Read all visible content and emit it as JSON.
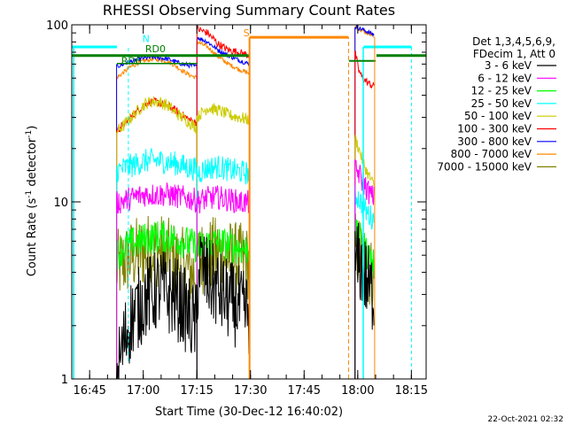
{
  "chart_data": {
    "type": "line",
    "title": "RHESSI Observing Summary Count Rates",
    "xlabel": "Start Time (30-Dec-12 16:40:02)",
    "ylabel_main": "Count Rate (s",
    "ylabel_sup1": "-1",
    "ylabel_mid": " detector",
    "ylabel_sup2": "-1",
    "ylabel_end": ")",
    "yscale": "log",
    "ylim": [
      1,
      100
    ],
    "y_ticks": [
      "1",
      "10",
      "100"
    ],
    "xlim_minutes": [
      -0.03,
      99.1
    ],
    "x_ticks": [
      {
        "label": "16:45",
        "m": 4.97
      },
      {
        "label": "17:00",
        "m": 19.97
      },
      {
        "label": "17:15",
        "m": 34.97
      },
      {
        "label": "17:30",
        "m": 49.97
      },
      {
        "label": "17:45",
        "m": 64.97
      },
      {
        "label": "18:00",
        "m": 79.97
      },
      {
        "label": "18:15",
        "m": 94.97
      }
    ],
    "legend_placement": "right",
    "legend_header": [
      "Det 1,3,4,5,6,9,",
      "FDecim 1, Att 0"
    ],
    "series": [
      {
        "name": "3 - 6 keV",
        "color": "#000000",
        "seg1": [
          1.0,
          1.6,
          2.2,
          2.5,
          2.9,
          3.0,
          3.3,
          3.0,
          2.9,
          2.6,
          2.2,
          2.0
        ],
        "seg2": [
          3.2,
          4.5,
          4.2,
          3.8,
          3.6,
          3.4,
          3.3,
          3.1,
          3.0,
          2.9,
          2.8,
          2.7,
          2.6,
          2.6,
          2.5,
          2.4,
          2.4,
          2.3
        ],
        "seg3": [
          4.5,
          4.5,
          4.2,
          3.6,
          3.2,
          3.0
        ]
      },
      {
        "name": "6 - 12 keV",
        "color": "#ff00ff",
        "seg1": [
          9.8,
          10.2,
          10.5,
          10.8,
          11.0,
          11.0,
          11.0,
          11.0,
          10.8,
          10.6,
          10.4,
          10.2
        ],
        "seg2": [
          10.0,
          10.5,
          10.6,
          10.3,
          10.0,
          9.9
        ],
        "seg3": [
          15.0,
          14.5,
          13.0,
          12.0,
          11.0,
          10.5
        ]
      },
      {
        "name": "12 - 25 keV",
        "color": "#00ff00",
        "seg1": [
          5.0,
          5.5,
          5.8,
          6.0,
          6.2,
          6.3,
          6.4,
          6.3,
          6.2,
          6.0,
          5.8,
          5.6
        ],
        "seg2": [
          5.5,
          5.8,
          5.9,
          5.7,
          5.5,
          5.4
        ],
        "seg3": [
          6.5,
          6.3,
          5.8,
          5.2,
          4.8,
          4.5
        ]
      },
      {
        "name": "25 - 50 keV",
        "color": "#00ffff",
        "seg1": [
          15.0,
          15.5,
          16.0,
          16.5,
          17.0,
          17.2,
          17.0,
          16.8,
          16.5,
          16.0,
          15.6,
          15.2
        ],
        "seg2": [
          14.5,
          15.5,
          15.8,
          15.2,
          14.8,
          14.5
        ],
        "seg3": [
          11.0,
          10.5,
          9.5,
          8.8,
          8.3,
          8.0
        ]
      },
      {
        "name": "50 - 100 keV",
        "color": "#cccc00",
        "seg1": [
          25.0,
          27.0,
          30.0,
          33.0,
          36.0,
          37.0,
          36.5,
          35.0,
          32.0,
          30.0,
          28.0,
          26.0
        ],
        "seg2": [
          30.0,
          34.0,
          33.0,
          31.0,
          30.0,
          29.0
        ],
        "seg3": [
          23.0,
          20.0,
          17.0,
          15.0,
          13.5,
          12.5
        ]
      },
      {
        "name": "100 - 300 keV",
        "color": "#ff0000",
        "seg1": [
          25.0,
          27.5,
          30.0,
          33.0,
          36.0,
          37.0,
          36.0,
          35.0,
          33.0,
          31.0,
          29.0,
          28.0
        ],
        "seg2": [
          95.0,
          90.0,
          78.0,
          72.0,
          70.0,
          67.0
        ],
        "seg3": [
          70.0,
          55.0,
          50.0,
          48.0,
          46.0,
          45.0
        ]
      },
      {
        "name": "300 - 800 keV",
        "color": "#0000ff",
        "seg1": [
          58.0,
          60.0,
          62.0,
          64.0,
          65.0,
          65.5,
          65.0,
          64.0,
          62.0,
          60.0,
          59.0,
          58.0
        ],
        "seg2": [
          85.0,
          80.0,
          72.0,
          67.0,
          63.0,
          60.0
        ],
        "seg3": [
          98.0,
          96.0,
          94.0,
          92.0,
          90.0,
          88.0
        ]
      },
      {
        "name": "800 - 7000 keV",
        "color": "#ff8800",
        "seg1": [
          50.0,
          54.0,
          58.0,
          61.0,
          63.0,
          64.0,
          63.5,
          62.0,
          59.0,
          55.0,
          52.0,
          50.0
        ],
        "seg2": [
          80.0,
          75.0,
          66.0,
          60.0,
          56.0,
          53.0
        ],
        "seg3": [
          98.0,
          95.0,
          92.0,
          90.0,
          88.0,
          87.0
        ]
      },
      {
        "name": "7000 - 15000 keV",
        "color": "#808000",
        "seg1": [
          4.2,
          4.6,
          4.9,
          5.1,
          5.3,
          5.4,
          5.3,
          5.0,
          4.7,
          4.4,
          4.1,
          3.9
        ],
        "seg2": [
          4.8,
          5.0,
          5.1,
          4.9,
          4.7,
          4.5
        ],
        "seg3": [
          5.5,
          5.2,
          4.8,
          4.4,
          4.0,
          3.7
        ]
      }
    ],
    "flag_lines": {
      "cyan_level": 75,
      "green_level": 67,
      "orange_level": 85
    },
    "annotations": [
      {
        "text": "N",
        "color": "#00ffff",
        "m": 19.7,
        "v": 80
      },
      {
        "text": "RD6",
        "color": "#008000",
        "m": 13.8,
        "v": 60
      },
      {
        "text": "RD0",
        "color": "#008000",
        "m": 20.5,
        "v": 70
      },
      {
        "text": "S",
        "color": "#ff8800",
        "m": 48.0,
        "v": 86
      }
    ]
  },
  "footer": {
    "date_stamp": "22-Oct-2021 02:32"
  }
}
